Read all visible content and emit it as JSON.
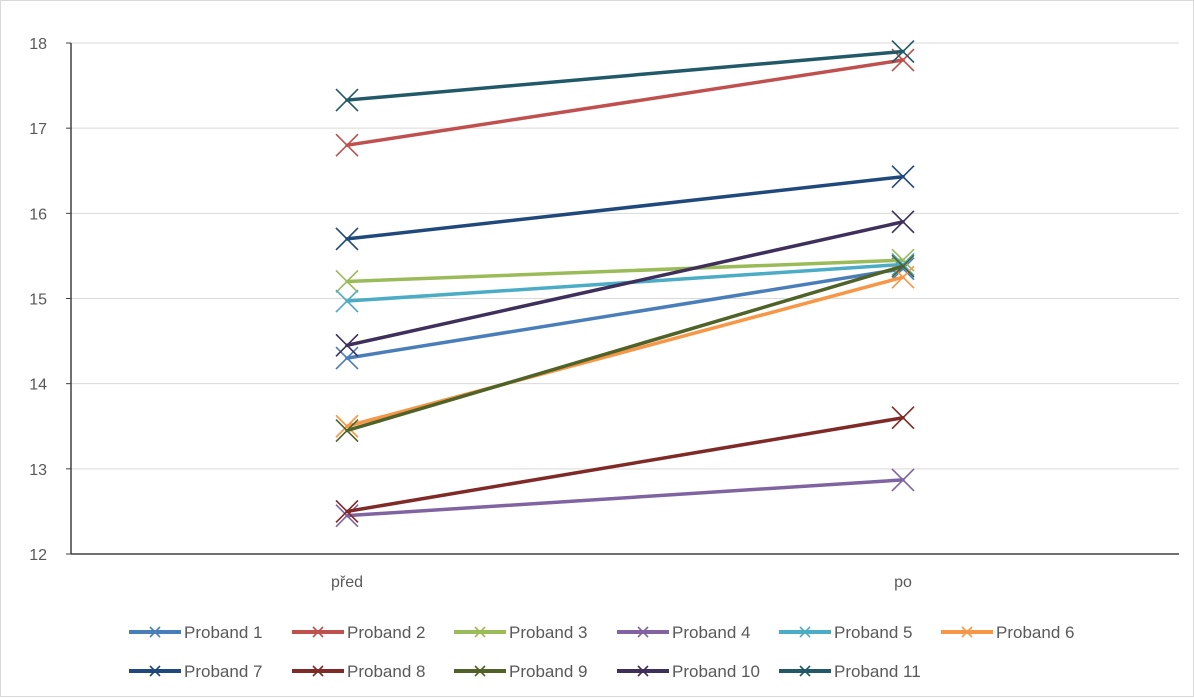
{
  "chart_data": {
    "type": "line",
    "title": "",
    "xlabel": "",
    "ylabel": "",
    "categories": [
      "před",
      "po"
    ],
    "ylim": [
      12,
      18
    ],
    "yticks": [
      12,
      13,
      14,
      15,
      16,
      17,
      18
    ],
    "grid": true,
    "legend_position": "bottom",
    "marker": "x",
    "series": [
      {
        "name": "Proband 1",
        "color": "#4a7ebb",
        "values": [
          14.3,
          15.35
        ]
      },
      {
        "name": "Proband 2",
        "color": "#c0504d",
        "values": [
          16.8,
          17.8
        ]
      },
      {
        "name": "Proband 3",
        "color": "#9bbb59",
        "values": [
          15.2,
          15.45
        ]
      },
      {
        "name": "Proband 4",
        "color": "#8064a2",
        "values": [
          12.45,
          12.87
        ]
      },
      {
        "name": "Proband 5",
        "color": "#4bacc6",
        "values": [
          14.97,
          15.4
        ]
      },
      {
        "name": "Proband 6",
        "color": "#f79646",
        "values": [
          13.5,
          15.25
        ]
      },
      {
        "name": "Proband 7",
        "color": "#1f497d",
        "values": [
          15.7,
          16.43
        ]
      },
      {
        "name": "Proband 8",
        "color": "#7f2a26",
        "values": [
          12.5,
          13.6
        ]
      },
      {
        "name": "Proband 9",
        "color": "#4f6228",
        "values": [
          13.45,
          15.38
        ]
      },
      {
        "name": "Proband 10",
        "color": "#3f2f5b",
        "values": [
          14.45,
          15.9
        ]
      },
      {
        "name": "Proband 11",
        "color": "#215968",
        "values": [
          17.33,
          17.9
        ]
      }
    ]
  }
}
